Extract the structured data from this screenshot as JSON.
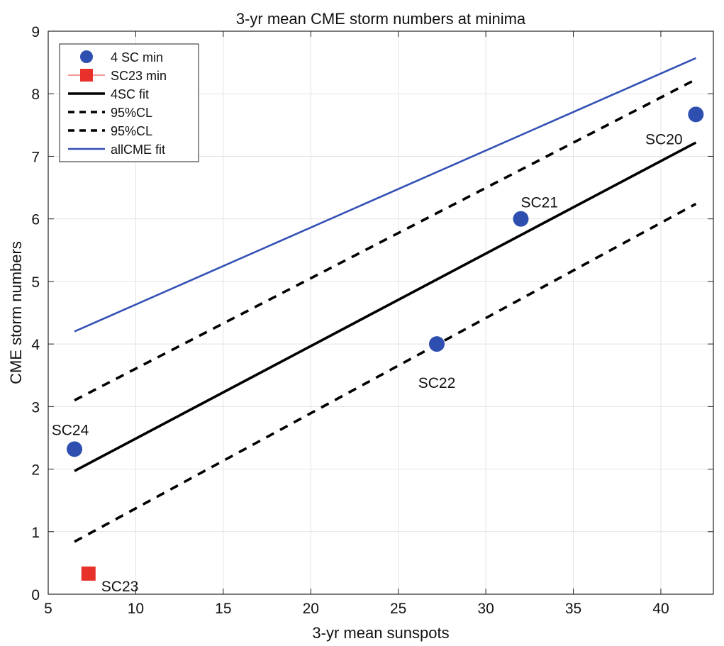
{
  "chart_data": {
    "type": "scatter",
    "title": "3-yr mean CME storm numbers at minima",
    "xlabel": "3-yr mean sunspots",
    "ylabel": "CME storm numbers",
    "xlim": [
      5,
      43
    ],
    "ylim": [
      0,
      9
    ],
    "xticks": [
      5,
      10,
      15,
      20,
      25,
      30,
      35,
      40
    ],
    "yticks": [
      0,
      1,
      2,
      3,
      4,
      5,
      6,
      7,
      8,
      9
    ],
    "grid": true,
    "legend_position": "top-left",
    "series": [
      {
        "name": "4 SC min",
        "kind": "points",
        "marker": "circle",
        "color": "#2e4fb0",
        "points": [
          {
            "x": 6.5,
            "y": 2.32,
            "label": "SC24"
          },
          {
            "x": 27.2,
            "y": 4.0,
            "label": "SC22"
          },
          {
            "x": 32.0,
            "y": 6.0,
            "label": "SC21"
          },
          {
            "x": 42.0,
            "y": 7.67,
            "label": "SC20"
          }
        ]
      },
      {
        "name": "SC23 min",
        "kind": "points",
        "marker": "square",
        "color": "#e8312a",
        "points": [
          {
            "x": 7.3,
            "y": 0.33,
            "label": "SC23"
          }
        ]
      },
      {
        "name": "4SC fit",
        "kind": "line",
        "style": "solid",
        "color": "#000000",
        "points": [
          {
            "x": 6.5,
            "y": 1.97
          },
          {
            "x": 42.0,
            "y": 7.22
          }
        ]
      },
      {
        "name": "95%CL",
        "kind": "line",
        "style": "dashed",
        "color": "#000000",
        "points": [
          {
            "x": 6.5,
            "y": 3.1
          },
          {
            "x": 42.0,
            "y": 8.23
          }
        ]
      },
      {
        "name": "95%CL",
        "kind": "line",
        "style": "dashed",
        "color": "#000000",
        "points": [
          {
            "x": 6.5,
            "y": 0.84
          },
          {
            "x": 42.0,
            "y": 6.24
          }
        ]
      },
      {
        "name": "allCME fit",
        "kind": "line",
        "style": "solid",
        "color": "#3350b5",
        "points": [
          {
            "x": 6.5,
            "y": 4.2
          },
          {
            "x": 42.0,
            "y": 8.57
          }
        ]
      }
    ]
  }
}
